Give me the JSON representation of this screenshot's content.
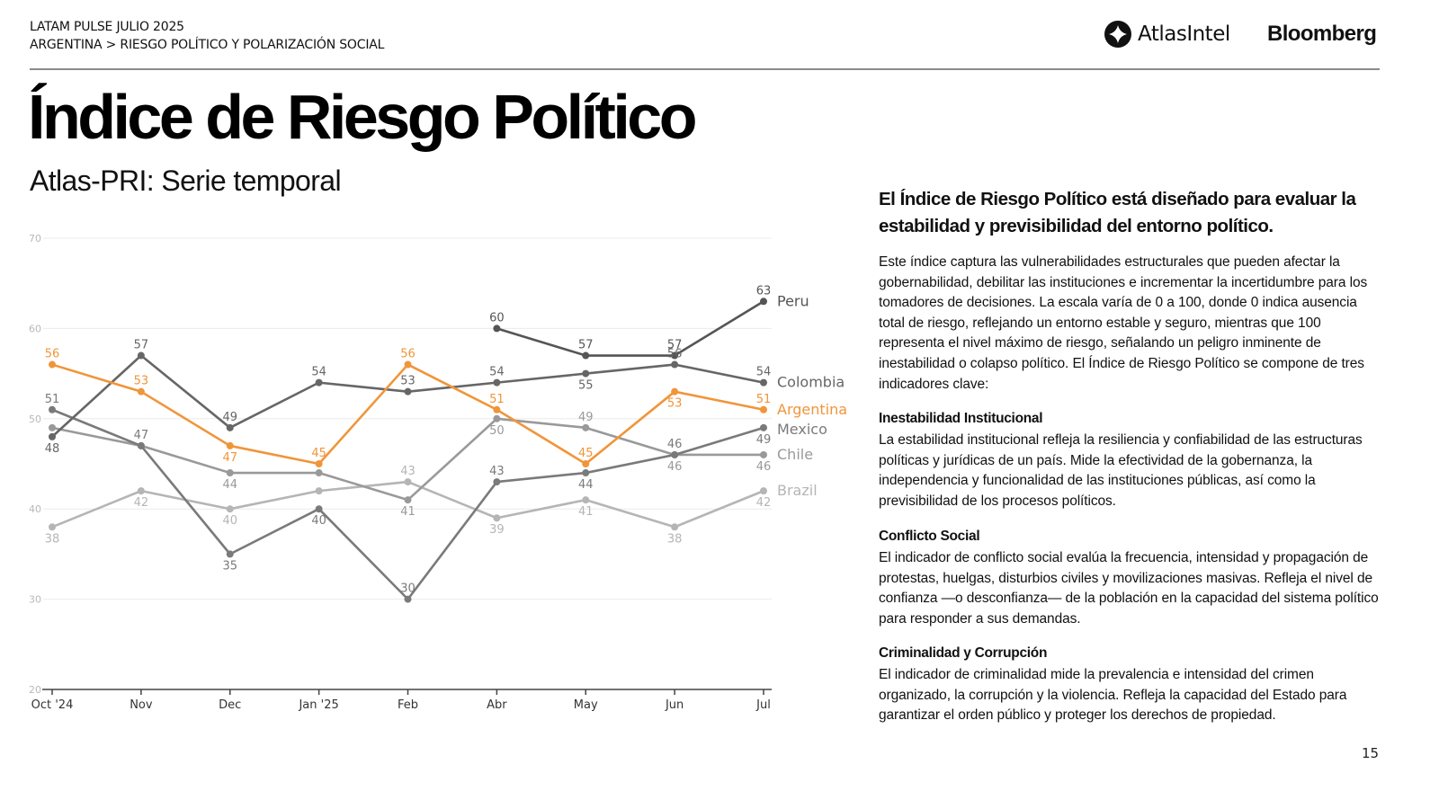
{
  "header": {
    "report": "LATAM PULSE JULIO 2025",
    "breadcrumb": "ARGENTINA > RIESGO POLÍTICO Y POLARIZACIÓN SOCIAL",
    "logos": {
      "atlas": "AtlasIntel",
      "bloomberg": "Bloomberg",
      "atlas_icon": "atlasintel-logo-icon"
    }
  },
  "title": "Índice de Riesgo Político",
  "subtitle": "Atlas-PRI: Serie temporal",
  "sidebar": {
    "heading": "El Índice de Riesgo Político está diseñado para evaluar la estabilidad y previsibilidad del entorno político.",
    "intro": "Este índice captura las vulnerabilidades estructurales que pueden afectar la gobernabilidad, debilitar las instituciones e incrementar la incertidumbre para los tomadores de decisiones. La escala varía de 0 a 100, donde 0 indica ausencia total de riesgo, reflejando un entorno estable y seguro, mientras que 100 representa el nivel máximo de riesgo, señalando un peligro inminente de inestabilidad o colapso político. El Índice de Riesgo Político se compone de tres indicadores clave:",
    "indicators": [
      {
        "title": "Inestabilidad Institucional",
        "text": "La estabilidad institucional refleja la resiliencia y confiabilidad de las estructuras políticas y jurídicas de un país. Mide la efectividad de la gobernanza, la independencia y funcionalidad de las instituciones públicas, así como la previsibilidad de los procesos políticos."
      },
      {
        "title": "Conflicto Social",
        "text": "El indicador de conflicto social evalúa la frecuencia, intensidad y propagación de protestas, huelgas, disturbios civiles y movilizaciones masivas. Refleja el nivel de confianza —o desconfianza— de la población en la capacidad del sistema político para responder a sus demandas."
      },
      {
        "title": "Criminalidad y Corrupción",
        "text": "El indicador de criminalidad mide la prevalencia e intensidad del crimen organizado, la corrupción y la violencia. Refleja la capacidad del Estado para garantizar el orden público y proteger los derechos de propiedad."
      }
    ]
  },
  "page_number": "15",
  "chart_data": {
    "type": "line",
    "title": "Índice de Riesgo Político",
    "subtitle": "Atlas-PRI: Serie temporal",
    "xlabel": "",
    "ylabel": "",
    "categories": [
      "Oct '24",
      "Nov",
      "Dec",
      "Jan '25",
      "Feb",
      "Abr",
      "May",
      "Jun",
      "Jul"
    ],
    "yticks": [
      20,
      30,
      40,
      50,
      60,
      70
    ],
    "ylim": [
      20,
      70
    ],
    "grid": true,
    "legend": "end-of-line labels (right)",
    "series": [
      {
        "name": "Peru",
        "color": "#555555",
        "values": [
          null,
          null,
          null,
          null,
          null,
          60,
          57,
          57,
          63
        ],
        "label_pos": [
          "",
          "",
          "",
          "",
          "",
          "above",
          "above",
          "above",
          "above"
        ]
      },
      {
        "name": "Colombia",
        "color": "#666666",
        "values": [
          48,
          57,
          49,
          54,
          53,
          54,
          55,
          56,
          54
        ],
        "label_pos": [
          "below",
          "above",
          "above",
          "above",
          "above",
          "above",
          "below",
          "above",
          "above"
        ]
      },
      {
        "name": "Argentina",
        "color": "#f0953a",
        "values": [
          56,
          53,
          47,
          45,
          56,
          51,
          45,
          53,
          51
        ],
        "label_pos": [
          "above",
          "above",
          "below",
          "above",
          "above",
          "above",
          "above",
          "below",
          "above"
        ]
      },
      {
        "name": "Mexico",
        "color": "#7a7a7a",
        "values": [
          51,
          47,
          35,
          40,
          30,
          43,
          44,
          46,
          49
        ],
        "label_pos": [
          "above",
          "above",
          "below",
          "below",
          "above",
          "above",
          "below",
          "above",
          "below"
        ]
      },
      {
        "name": "Chile",
        "color": "#999999",
        "values": [
          49,
          47,
          44,
          44,
          41,
          50,
          49,
          46,
          46
        ],
        "label_pos": [
          "",
          "",
          "below",
          "",
          "below",
          "below",
          "above",
          "below",
          "below"
        ]
      },
      {
        "name": "Brazil",
        "color": "#b5b5b5",
        "values": [
          38,
          42,
          40,
          42,
          43,
          39,
          41,
          38,
          42
        ],
        "label_pos": [
          "below",
          "below",
          "below",
          "",
          "above",
          "below",
          "below",
          "below",
          "below"
        ]
      }
    ]
  }
}
